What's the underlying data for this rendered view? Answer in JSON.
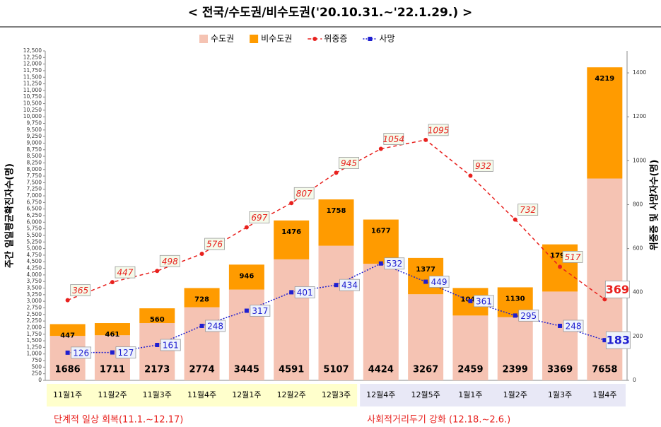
{
  "chart_data": {
    "type": "bar",
    "title": "< 전국/수도권/비수도권('20.10.31.~'22.1.29.) >",
    "y_label": "주간 일일평균확진자수(명)",
    "y2_label": "위중증 및 사망자수(명)",
    "categories": [
      "11월1주",
      "11월2주",
      "11월3주",
      "11월4주",
      "12월1주",
      "12월2주",
      "12월3주",
      "12월4주",
      "12월5주",
      "1월1주",
      "1월2주",
      "1월3주",
      "1월4주"
    ],
    "series": [
      {
        "name": "수도권",
        "type": "bar",
        "color": "#f5c3b3",
        "values": [
          1686,
          1711,
          2173,
          2774,
          3445,
          4591,
          5107,
          4424,
          3267,
          2459,
          2399,
          3369,
          7658
        ]
      },
      {
        "name": "비수도권",
        "type": "bar",
        "color": "#ff9b00",
        "values": [
          447,
          461,
          560,
          728,
          946,
          1476,
          1758,
          1677,
          1377,
          1046,
          1130,
          1790,
          4219
        ]
      },
      {
        "name": "위중증",
        "type": "line",
        "axis": "y2",
        "color": "#e8211e",
        "dash": "5,4",
        "marker": "circle",
        "values": [
          365,
          447,
          498,
          576,
          697,
          807,
          945,
          1054,
          1095,
          932,
          732,
          517,
          369
        ]
      },
      {
        "name": "사망",
        "type": "line",
        "axis": "y2",
        "color": "#1f1fd0",
        "dash": "2,2",
        "marker": "square",
        "values": [
          126,
          127,
          161,
          248,
          317,
          401,
          434,
          532,
          449,
          361,
          295,
          248,
          183
        ]
      }
    ],
    "groups": [
      {
        "label": "단계적 일상 회복(11.1.~12.17)",
        "start": 0,
        "end": 6,
        "color": "#ffffcc"
      },
      {
        "label": "사회적거리두기 강화 (12.18.~2.6.)",
        "start": 7,
        "end": 12,
        "color": "#e8e8f6"
      }
    ],
    "ylim": [
      0,
      12500
    ],
    "yticks": [
      0,
      250,
      500,
      750,
      {
        "value": 1000,
        "label": "1,000"
      },
      {
        "value": 1250,
        "label": "1,250"
      },
      {
        "value": 1500,
        "label": "1,500"
      },
      {
        "value": 1750,
        "label": "1,750"
      },
      {
        "value": 2000,
        "label": "2,000"
      },
      {
        "value": 2250,
        "label": "2,250"
      },
      {
        "value": 2500,
        "label": "2,500"
      },
      {
        "value": 2750,
        "label": "2,750"
      },
      {
        "value": 3000,
        "label": "3,000"
      },
      {
        "value": 3250,
        "label": "3,250"
      },
      {
        "value": 3500,
        "label": "3,500"
      },
      {
        "value": 3750,
        "label": "3,750"
      },
      {
        "value": 4000,
        "label": "4,000"
      },
      {
        "value": 4250,
        "label": "4,250"
      },
      {
        "value": 4500,
        "label": "4,500"
      },
      {
        "value": 4750,
        "label": "4,750"
      },
      {
        "value": 5000,
        "label": "5,000"
      },
      {
        "value": 5250,
        "label": "5,250"
      },
      {
        "value": 5500,
        "label": "5,500"
      },
      {
        "value": 5750,
        "label": "5,750"
      },
      {
        "value": 6000,
        "label": "6,000"
      },
      {
        "value": 6250,
        "label": "6,250"
      },
      {
        "value": 6500,
        "label": "6,500"
      },
      {
        "value": 6750,
        "label": "6,750"
      },
      {
        "value": 7000,
        "label": "7,000"
      },
      {
        "value": 7250,
        "label": "7,250"
      },
      {
        "value": 7500,
        "label": "7,500"
      },
      {
        "value": 7750,
        "label": "7,750"
      },
      {
        "value": 8000,
        "label": "8,000"
      },
      {
        "value": 8250,
        "label": "8,250"
      },
      {
        "value": 8500,
        "label": "8,500"
      },
      {
        "value": 8750,
        "label": "8,750"
      },
      {
        "value": 9000,
        "label": "9,000"
      },
      {
        "value": 9250,
        "label": "9,250"
      },
      {
        "value": 9500,
        "label": "9,500"
      },
      {
        "value": 9750,
        "label": "9,750"
      },
      {
        "value": 10000,
        "label": "10,000"
      },
      {
        "value": 10250,
        "label": "10,250"
      },
      {
        "value": 10500,
        "label": "10,500"
      },
      {
        "value": 10750,
        "label": "10,750"
      },
      {
        "value": 11000,
        "label": "11,000"
      },
      {
        "value": 11250,
        "label": "11,250"
      },
      {
        "value": 11500,
        "label": "11,500"
      },
      {
        "value": 11750,
        "label": "11,750"
      },
      {
        "value": 12000,
        "label": "12,000"
      },
      {
        "value": 12250,
        "label": "12,250"
      },
      {
        "value": 12500,
        "label": "12,500"
      }
    ],
    "y2lim": [
      0,
      1500
    ],
    "y2ticks": [
      0,
      200,
      400,
      600,
      800,
      1000,
      1200,
      1400
    ],
    "legend": "top"
  }
}
